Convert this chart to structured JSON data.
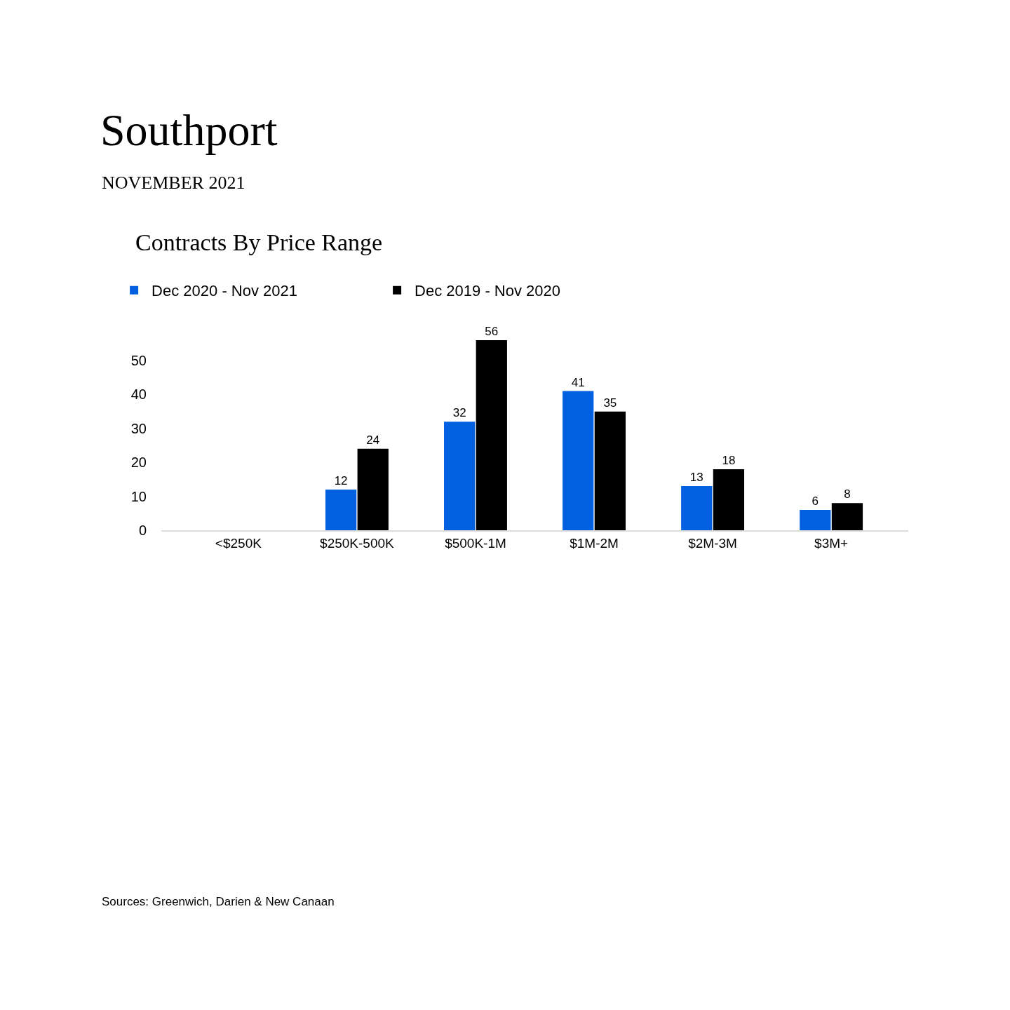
{
  "chart_data": {
    "type": "bar",
    "title": "Southport",
    "subtitle": "NOVEMBER 2021",
    "annotations": [
      "Contracts By Price Range",
      "Sources: Greenwich, Darien & New Canaan"
    ],
    "categories": [
      "<$250K",
      "$250K-500K",
      "$500K-1M",
      "$1M-2M",
      "$2M-3M",
      "$3M+"
    ],
    "series": [
      {
        "name": "Dec 2020 - Nov 2021",
        "color": "#0060df",
        "values": [
          null,
          12,
          32,
          41,
          13,
          6
        ]
      },
      {
        "name": "Dec 2019 - Nov 2020",
        "color": "#000000",
        "values": [
          null,
          24,
          56,
          35,
          18,
          8
        ]
      }
    ],
    "ylim": [
      0,
      56
    ],
    "yticks": [
      0,
      10,
      20,
      30,
      40,
      50
    ],
    "legend": "top left",
    "data_labels": true
  }
}
